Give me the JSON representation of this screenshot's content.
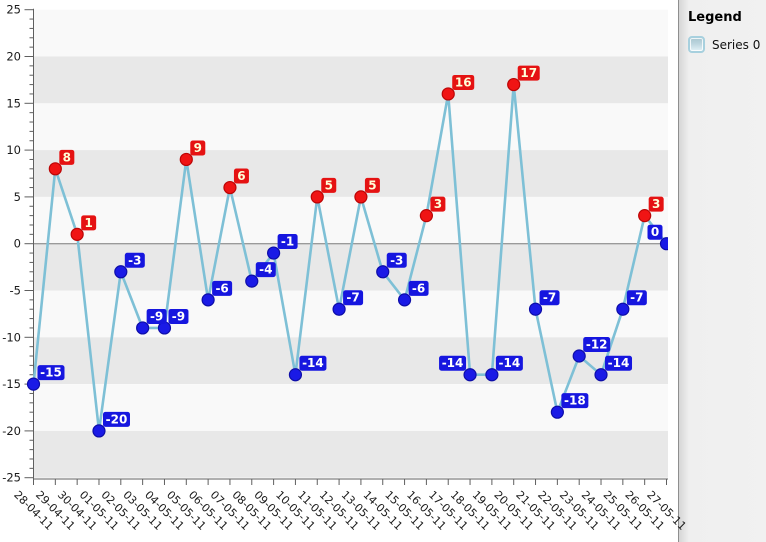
{
  "legend": {
    "title": "Legend",
    "series_label": "Series 0"
  },
  "chart_data": {
    "type": "line",
    "title": "",
    "xlabel": "",
    "ylabel": "",
    "categories": [
      "28-04-11",
      "29-04-11",
      "30-04-11",
      "01-05-11",
      "02-05-11",
      "03-05-11",
      "04-05-11",
      "05-05-11",
      "06-05-11",
      "07-05-11",
      "08-05-11",
      "09-05-11",
      "10-05-11",
      "11-05-11",
      "12-05-11",
      "13-05-11",
      "14-05-11",
      "15-05-11",
      "16-05-11",
      "17-05-11",
      "18-05-11",
      "19-05-11",
      "20-05-11",
      "21-05-11",
      "22-05-11",
      "23-05-11",
      "24-05-11",
      "25-05-11",
      "26-05-11",
      "27-05-11"
    ],
    "series": [
      {
        "name": "Series 0",
        "values": [
          -15,
          8,
          1,
          -20,
          -3,
          -9,
          -9,
          9,
          -6,
          6,
          -4,
          -1,
          -14,
          5,
          -7,
          5,
          -3,
          -6,
          3,
          16,
          -14,
          -14,
          17,
          -7,
          -18,
          -12,
          -14,
          -7,
          3,
          0
        ]
      }
    ],
    "point_labels_shown": true,
    "ylim": [
      -25,
      25
    ],
    "y_major_step": 5,
    "y_minor_step": 1,
    "x_tick_rotation": 45,
    "grid": "alternating-horizontal-bands",
    "legend_position": "right",
    "label_side_overrides": {
      "20": "left",
      "29": "left"
    },
    "colors": {
      "line": "#7ec0d6",
      "marker_positive": "#f01414",
      "marker_positive_border": "#bb0505",
      "marker_negative": "#1a1ae6",
      "marker_negative_border": "#0d0da8",
      "label_positive_bg": "#e51212",
      "label_positive_text": "#ffffd8",
      "label_negative_bg": "#1616df",
      "label_negative_text": "#ffffff",
      "band_dark": "#e8e8e8",
      "band_light": "#f9f9f9",
      "axis": "#5f5f5f",
      "zero_line": "#7a7a7a",
      "tick_text": "#1a1a1a"
    }
  }
}
